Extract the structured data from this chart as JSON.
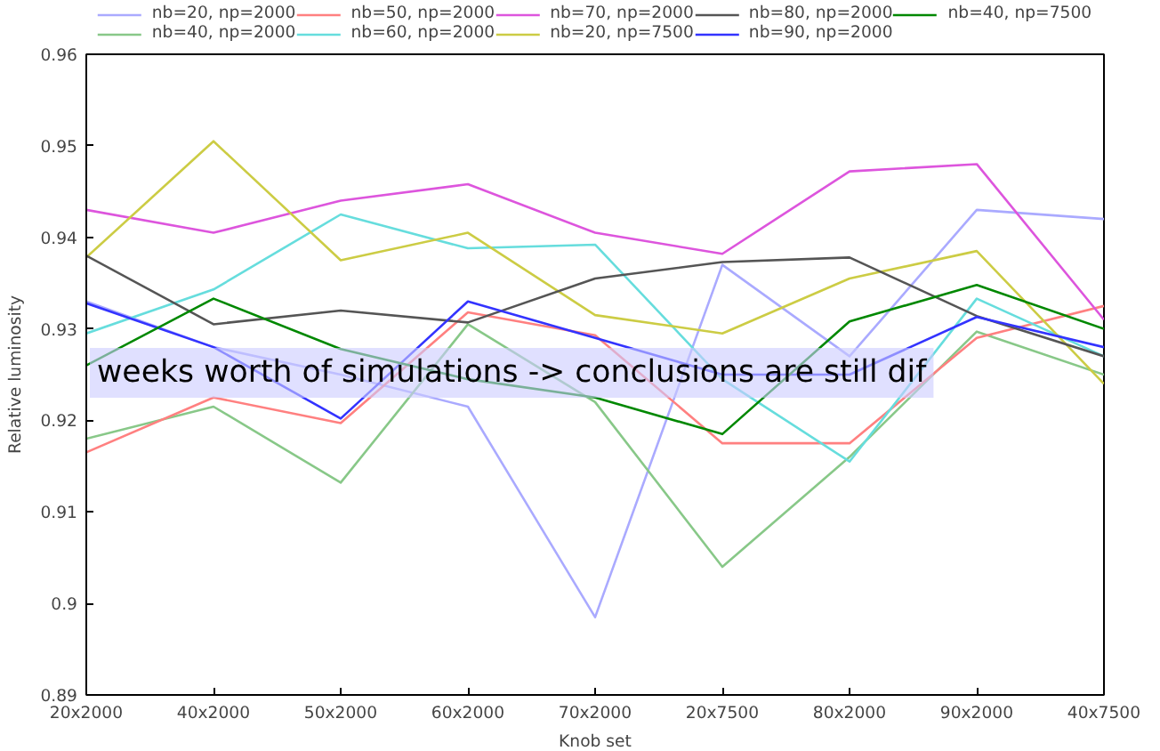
{
  "chart_data": {
    "type": "line",
    "xlabel": "Knob set",
    "ylabel": "Relative luminosity",
    "categories": [
      "20x2000",
      "40x2000",
      "50x2000",
      "60x2000",
      "70x2000",
      "20x7500",
      "80x2000",
      "90x2000",
      "40x7500"
    ],
    "ylim": [
      0.89,
      0.96
    ],
    "yticks": [
      0.89,
      0.9,
      0.91,
      0.92,
      0.93,
      0.94,
      0.95,
      0.96
    ],
    "series": [
      {
        "name": "nb=20, np=2000",
        "color": "#aaaaff",
        "values": [
          0.933,
          0.928,
          0.925,
          0.9215,
          0.8985,
          0.937,
          0.927,
          0.943,
          0.942
        ]
      },
      {
        "name": "nb=40, np=2000",
        "color": "#88c888",
        "values": [
          0.918,
          0.9215,
          0.9132,
          0.9305,
          0.922,
          0.904,
          0.916,
          0.9297,
          0.925
        ]
      },
      {
        "name": "nb=50, np=2000",
        "color": "#ff8080",
        "values": [
          0.9165,
          0.9225,
          0.9197,
          0.9318,
          0.9293,
          0.9175,
          0.9175,
          0.929,
          0.9325
        ]
      },
      {
        "name": "nb=60, np=2000",
        "color": "#66dddd",
        "values": [
          0.9295,
          0.9343,
          0.9425,
          0.9388,
          0.9392,
          0.9245,
          0.9155,
          0.9333,
          0.927
        ]
      },
      {
        "name": "nb=70, np=2000",
        "color": "#dd55dd",
        "values": [
          0.943,
          0.9405,
          0.944,
          0.9458,
          0.9405,
          0.9382,
          0.9472,
          0.948,
          0.931
        ]
      },
      {
        "name": "nb=20, np=7500",
        "color": "#cccc44",
        "values": [
          0.9378,
          0.9505,
          0.9375,
          0.9405,
          0.9315,
          0.9295,
          0.9355,
          0.9385,
          0.924
        ]
      },
      {
        "name": "nb=80, np=2000",
        "color": "#555555",
        "values": [
          0.938,
          0.9305,
          0.932,
          0.9307,
          0.9355,
          0.9373,
          0.9378,
          0.9314,
          0.927
        ]
      },
      {
        "name": "nb=90, np=2000",
        "color": "#3333ff",
        "values": [
          0.9328,
          0.928,
          0.9202,
          0.933,
          0.929,
          0.925,
          0.925,
          0.9313,
          0.928
        ]
      },
      {
        "name": "nb=40, np=7500",
        "color": "#008800",
        "values": [
          0.926,
          0.9333,
          0.9278,
          0.9245,
          0.9225,
          0.9185,
          0.9308,
          0.9348,
          0.93
        ]
      }
    ],
    "legend": "top",
    "grid": false,
    "annotations": [
      "weeks worth of simulations -> conclusions are still dif"
    ]
  }
}
